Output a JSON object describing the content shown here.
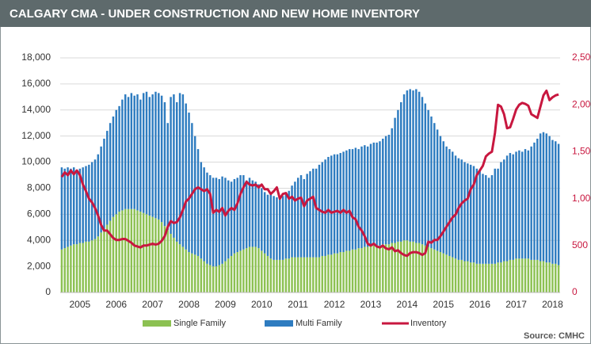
{
  "chart_data": {
    "type": "bar",
    "stacked": true,
    "title": "CALGARY CMA - UNDER CONSTRUCTION AND NEW HOME INVENTORY",
    "source": "Source: CMHC",
    "categories": [
      null,
      null,
      null,
      null,
      null,
      null,
      "2005",
      null,
      null,
      null,
      null,
      null,
      null,
      null,
      null,
      null,
      null,
      null,
      "2006",
      null,
      null,
      null,
      null,
      null,
      null,
      null,
      null,
      null,
      null,
      null,
      "2007",
      null,
      null,
      null,
      null,
      null,
      null,
      null,
      null,
      null,
      null,
      null,
      "2008",
      null,
      null,
      null,
      null,
      null,
      null,
      null,
      null,
      null,
      null,
      null,
      "2009",
      null,
      null,
      null,
      null,
      null,
      null,
      null,
      null,
      null,
      null,
      null,
      "2010",
      null,
      null,
      null,
      null,
      null,
      null,
      null,
      null,
      null,
      null,
      null,
      "2011",
      null,
      null,
      null,
      null,
      null,
      null,
      null,
      null,
      null,
      null,
      null,
      "2012",
      null,
      null,
      null,
      null,
      null,
      null,
      null,
      null,
      null,
      null,
      null,
      "2013",
      null,
      null,
      null,
      null,
      null,
      null,
      null,
      null,
      null,
      null,
      null,
      "2014",
      null,
      null,
      null,
      null,
      null,
      null,
      null,
      null,
      null,
      null,
      null,
      "2015",
      null,
      null,
      null,
      null,
      null,
      null,
      null,
      null,
      null,
      null,
      null,
      "2016",
      null,
      null,
      null,
      null,
      null,
      null,
      null,
      null,
      null,
      null,
      null,
      "2017",
      null,
      null,
      null,
      null,
      null,
      null,
      null,
      null,
      null,
      null,
      null,
      "2018",
      null,
      null
    ],
    "series": [
      {
        "name": "Single Family",
        "color": "#8cc152",
        "values": [
          3300,
          3400,
          3500,
          3600,
          3700,
          3700,
          3800,
          3800,
          3900,
          3900,
          4000,
          4100,
          4300,
          4600,
          4900,
          5200,
          5500,
          5800,
          6000,
          6200,
          6300,
          6400,
          6400,
          6400,
          6400,
          6300,
          6200,
          6100,
          6000,
          5900,
          5800,
          5700,
          5600,
          5400,
          5100,
          4800,
          4500,
          4200,
          3900,
          3700,
          3500,
          3300,
          3100,
          3000,
          2900,
          2800,
          2600,
          2400,
          2200,
          2100,
          2000,
          2000,
          2100,
          2200,
          2400,
          2600,
          2800,
          3000,
          3100,
          3200,
          3300,
          3400,
          3500,
          3500,
          3500,
          3400,
          3200,
          3000,
          2800,
          2600,
          2500,
          2500,
          2500,
          2500,
          2600,
          2600,
          2700,
          2700,
          2700,
          2700,
          2700,
          2700,
          2700,
          2700,
          2700,
          2700,
          2800,
          2800,
          2900,
          2900,
          3000,
          3000,
          3100,
          3100,
          3200,
          3200,
          3300,
          3300,
          3400,
          3400,
          3500,
          3500,
          3600,
          3600,
          3600,
          3600,
          3700,
          3700,
          3700,
          3800,
          3800,
          3900,
          3900,
          4000,
          4000,
          3900,
          3900,
          3800,
          3800,
          3700,
          3600,
          3500,
          3400,
          3300,
          3200,
          3100,
          3000,
          2900,
          2800,
          2700,
          2600,
          2500,
          2500,
          2400,
          2400,
          2300,
          2300,
          2200,
          2200,
          2200,
          2200,
          2200,
          2200,
          2200,
          2300,
          2300,
          2400,
          2400,
          2500,
          2500,
          2600,
          2600,
          2600,
          2600,
          2600,
          2500,
          2500,
          2500,
          2400,
          2400,
          2300,
          2300,
          2200,
          2200,
          2100
        ]
      },
      {
        "name": "Multi Family",
        "color": "#2e7cc0",
        "values": [
          6300,
          6100,
          6100,
          5900,
          5900,
          5700,
          5700,
          5800,
          5800,
          5900,
          6000,
          6100,
          6300,
          6600,
          6900,
          7200,
          7500,
          7700,
          8000,
          8100,
          8500,
          8800,
          8600,
          8900,
          8700,
          8900,
          8600,
          9200,
          9400,
          9100,
          9400,
          9700,
          9700,
          9700,
          9500,
          8200,
          10500,
          11000,
          10700,
          11600,
          11700,
          11200,
          10700,
          10000,
          9100,
          8200,
          7400,
          7200,
          7000,
          6900,
          6800,
          6800,
          6600,
          6700,
          6400,
          6000,
          5700,
          5700,
          5700,
          5800,
          5700,
          5200,
          5300,
          5100,
          5000,
          4900,
          4800,
          4700,
          4700,
          4900,
          4900,
          4800,
          4800,
          4900,
          5000,
          5200,
          5500,
          5800,
          6100,
          6300,
          6000,
          6400,
          6600,
          6800,
          6800,
          7100,
          7200,
          7400,
          7500,
          7600,
          7600,
          7600,
          7600,
          7700,
          7700,
          7800,
          7700,
          7800,
          7600,
          7800,
          7800,
          7700,
          7800,
          7900,
          7900,
          8000,
          8100,
          8300,
          8400,
          8800,
          9600,
          10100,
          10700,
          11200,
          11500,
          11700,
          11600,
          11800,
          11600,
          11300,
          10900,
          10500,
          10100,
          9700,
          9300,
          8900,
          8600,
          8300,
          8200,
          8100,
          7900,
          7800,
          7700,
          7600,
          7500,
          7500,
          7400,
          7300,
          7100,
          6900,
          6800,
          6600,
          6800,
          7300,
          7200,
          7700,
          7800,
          8100,
          8200,
          8100,
          8200,
          8300,
          8200,
          8400,
          8300,
          8700,
          9000,
          9300,
          9800,
          9900,
          9900,
          9700,
          9500,
          9400,
          9300
        ]
      },
      {
        "name": "Inventory",
        "type": "line",
        "axis": "y2",
        "color": "#c8173f",
        "values": [
          1230,
          1280,
          1250,
          1300,
          1260,
          1300,
          1250,
          1150,
          1080,
          1000,
          960,
          900,
          820,
          720,
          660,
          660,
          620,
          580,
          560,
          560,
          570,
          570,
          550,
          530,
          500,
          490,
          480,
          500,
          500,
          510,
          520,
          510,
          520,
          550,
          600,
          700,
          760,
          740,
          750,
          800,
          880,
          970,
          1000,
          1050,
          1100,
          1120,
          1100,
          1080,
          1100,
          1050,
          850,
          880,
          860,
          900,
          820,
          870,
          900,
          880,
          950,
          1050,
          1120,
          1180,
          1150,
          1140,
          1150,
          1120,
          1150,
          1100,
          1100,
          1050,
          1080,
          1120,
          1000,
          1050,
          1060,
          1000,
          1020,
          980,
          1000,
          1010,
          920,
          980,
          1000,
          1020,
          900,
          880,
          860,
          850,
          880,
          850,
          860,
          870,
          850,
          880,
          850,
          870,
          800,
          780,
          700,
          660,
          600,
          520,
          500,
          520,
          490,
          480,
          500,
          470,
          460,
          480,
          440,
          450,
          420,
          400,
          390,
          420,
          430,
          430,
          420,
          400,
          420,
          540,
          530,
          560,
          560,
          600,
          650,
          700,
          750,
          800,
          830,
          900,
          950,
          980,
          1000,
          1100,
          1150,
          1250,
          1300,
          1350,
          1450,
          1480,
          1500,
          1700,
          2000,
          1980,
          1900,
          1750,
          1760,
          1850,
          1950,
          2000,
          2020,
          2010,
          1990,
          1900,
          1880,
          1860,
          1980,
          2100,
          2150,
          2050,
          2080,
          2100,
          2110
        ]
      }
    ],
    "ylim": [
      0,
      18000
    ],
    "yticks": [
      0,
      {
        "value": 2000,
        "label": "2,000"
      },
      {
        "value": 4000,
        "label": "4,000"
      },
      {
        "value": 6000,
        "label": "6,000"
      },
      {
        "value": 8000,
        "label": "8,000"
      },
      {
        "value": 10000,
        "label": "10,000"
      },
      {
        "value": 12000,
        "label": "12,000"
      },
      {
        "value": 14000,
        "label": "14,000"
      },
      {
        "value": 16000,
        "label": "16,000"
      },
      {
        "value": 18000,
        "label": "18,000"
      }
    ],
    "y2lim": [
      0,
      2500
    ],
    "y2ticks": [
      0,
      500,
      {
        "value": 1000,
        "label": "1,000"
      },
      {
        "value": 1500,
        "label": "1,500"
      },
      {
        "value": 2000,
        "label": "2,000"
      },
      {
        "value": 2500,
        "label": "2,500"
      }
    ],
    "y2color": "#c8173f",
    "grid": true
  }
}
